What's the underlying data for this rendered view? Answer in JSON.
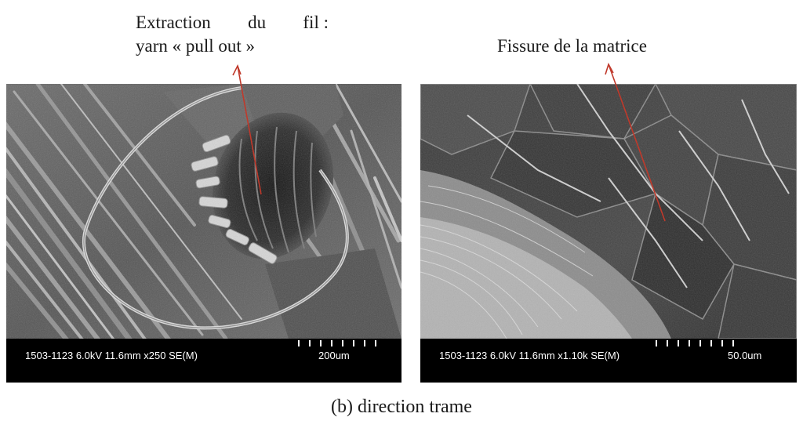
{
  "annotations": {
    "left_line1_words": [
      "Extraction",
      "du",
      "fil :"
    ],
    "left_line2": "yarn « pull out »",
    "right": "Fissure de la matrice"
  },
  "images": {
    "left": {
      "subject": "SEM micrograph of fibre bundles with yarn pull-out cavity",
      "params": "1503-1123 6.0kV 11.6mm x250 SE(M)",
      "scale_label": "200um"
    },
    "right": {
      "subject": "SEM micrograph of cracked resin matrix",
      "params": "1503-1123 6.0kV 11.6mm x1.10k SE(M)",
      "scale_label": "50.0um"
    }
  },
  "caption": "(b) direction trame",
  "colors": {
    "annotation_arrow": "#c0392b",
    "info_bar": "#000000",
    "info_text": "#ffffff"
  }
}
